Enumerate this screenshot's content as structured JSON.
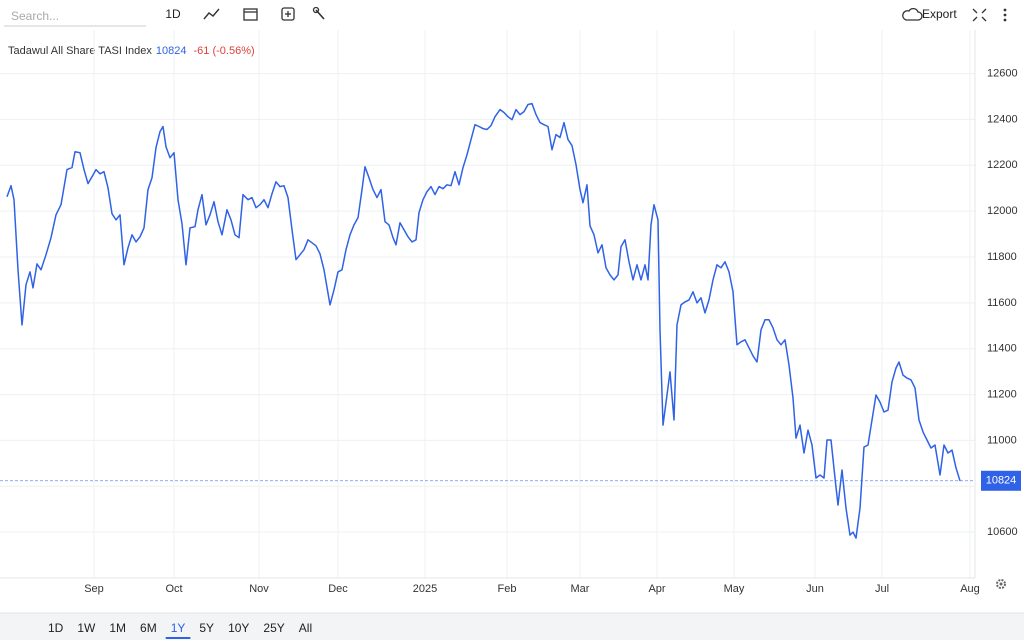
{
  "toolbar": {
    "search_placeholder": "Search...",
    "interval": "1D",
    "export": "Export"
  },
  "chart_data": {
    "type": "line",
    "title": "Tadawul All Share TASI Index",
    "last_value": 10824,
    "change": "-61 (-0.56%)",
    "color": "#2f62e6",
    "change_color": "#e0413a",
    "grid": true,
    "xlim": [
      -7,
      968
    ],
    "ylim": [
      10400,
      12790
    ],
    "xticks": [
      {
        "value": 87,
        "label": "Sep"
      },
      {
        "value": 167,
        "label": "Oct"
      },
      {
        "value": 252,
        "label": "Nov"
      },
      {
        "value": 331,
        "label": "Dec"
      },
      {
        "value": 418,
        "label": "2025"
      },
      {
        "value": 500,
        "label": "Feb"
      },
      {
        "value": 573,
        "label": "Mar"
      },
      {
        "value": 650,
        "label": "Apr"
      },
      {
        "value": 727,
        "label": "May"
      },
      {
        "value": 808,
        "label": "Jun"
      },
      {
        "value": 875,
        "label": "Jul"
      },
      {
        "value": 963,
        "label": "Aug"
      }
    ],
    "yticks": [
      10600,
      10800,
      11000,
      11200,
      11400,
      11600,
      11800,
      12000,
      12200,
      12400,
      12600
    ],
    "x": [
      0,
      4,
      7,
      11,
      15,
      19,
      23,
      26,
      30,
      34,
      39,
      44,
      49,
      54,
      60,
      65,
      68,
      73,
      77,
      81,
      85,
      89,
      93,
      97,
      101,
      105,
      109,
      113,
      117,
      121,
      125,
      129,
      133,
      137,
      141,
      145,
      149,
      153,
      156,
      159,
      163,
      167,
      171,
      175,
      179,
      183,
      188,
      191,
      195,
      199,
      203,
      207,
      211,
      215,
      220,
      224,
      228,
      232,
      236,
      241,
      245,
      249,
      253,
      257,
      261,
      265,
      269,
      273,
      277,
      281,
      285,
      289,
      293,
      297,
      301,
      305,
      309,
      313,
      317,
      323,
      327,
      331,
      335,
      339,
      343,
      347,
      351,
      355,
      358,
      362,
      366,
      370,
      374,
      378,
      382,
      386,
      389,
      393,
      397,
      401,
      405,
      409,
      412,
      416,
      420,
      424,
      428,
      432,
      436,
      440,
      444,
      448,
      452,
      456,
      460,
      464,
      468,
      472,
      476,
      480,
      484,
      488,
      493,
      497,
      501,
      505,
      509,
      513,
      517,
      521,
      525,
      529,
      533,
      537,
      541,
      545,
      549,
      553,
      557,
      561,
      565,
      569,
      573,
      576,
      580,
      583,
      587,
      591,
      595,
      599,
      603,
      607,
      611,
      614,
      618,
      622,
      626,
      630,
      634,
      638,
      641,
      644,
      647,
      651,
      653,
      656,
      660,
      663,
      667,
      670,
      674,
      678,
      682,
      686,
      690,
      694,
      698,
      702,
      706,
      710,
      714,
      718,
      722,
      726,
      730,
      734,
      738,
      742,
      746,
      750,
      754,
      758,
      762,
      766,
      770,
      774,
      778,
      782,
      786,
      789,
      793,
      797,
      801,
      805,
      809,
      813,
      817,
      820,
      824,
      828,
      831,
      835,
      839,
      843,
      846,
      849,
      853,
      857,
      861,
      865,
      869,
      873,
      877,
      881,
      885,
      889,
      892,
      896,
      900,
      904,
      908,
      912,
      916,
      920,
      924,
      928,
      933,
      937,
      941,
      945,
      949,
      953
    ],
    "values": [
      12063,
      12111,
      12050,
      11744,
      11504,
      11679,
      11735,
      11665,
      11770,
      11744,
      11810,
      11884,
      11984,
      12028,
      12181,
      12190,
      12259,
      12255,
      12181,
      12120,
      12150,
      12181,
      12163,
      12172,
      12102,
      11989,
      11962,
      11984,
      11766,
      11840,
      11897,
      11866,
      11888,
      11927,
      12094,
      12146,
      12277,
      12347,
      12369,
      12281,
      12233,
      12255,
      12050,
      11945,
      11766,
      11927,
      11932,
      12006,
      12072,
      11940,
      11984,
      12041,
      11954,
      11897,
      12006,
      11962,
      11897,
      11884,
      12072,
      12050,
      12059,
      12015,
      12028,
      12050,
      12015,
      12076,
      12128,
      12107,
      12111,
      12059,
      11919,
      11788,
      11810,
      11832,
      11875,
      11862,
      11849,
      11814,
      11744,
      11591,
      11657,
      11735,
      11744,
      11832,
      11897,
      11940,
      11971,
      12094,
      12194,
      12146,
      12094,
      12059,
      12094,
      11954,
      11940,
      11884,
      11853,
      11949,
      11919,
      11888,
      11866,
      11875,
      11993,
      12050,
      12085,
      12107,
      12072,
      12107,
      12098,
      12115,
      12111,
      12172,
      12115,
      12190,
      12246,
      12312,
      12377,
      12369,
      12360,
      12356,
      12373,
      12412,
      12443,
      12430,
      12412,
      12399,
      12443,
      12421,
      12434,
      12465,
      12469,
      12421,
      12386,
      12377,
      12369,
      12268,
      12334,
      12321,
      12386,
      12312,
      12286,
      12203,
      12094,
      12037,
      12115,
      11936,
      11897,
      11818,
      11853,
      11753,
      11722,
      11700,
      11722,
      11845,
      11875,
      11779,
      11700,
      11766,
      11700,
      11766,
      11700,
      11940,
      12028,
      11962,
      11482,
      11067,
      11198,
      11299,
      11089,
      11504,
      11591,
      11604,
      11613,
      11648,
      11600,
      11622,
      11556,
      11613,
      11700,
      11766,
      11753,
      11779,
      11735,
      11648,
      11417,
      11430,
      11439,
      11404,
      11369,
      11342,
      11482,
      11526,
      11526,
      11491,
      11439,
      11417,
      11439,
      11329,
      11185,
      11010,
      11067,
      10945,
      11045,
      10980,
      10836,
      10849,
      10836,
      11002,
      11002,
      10836,
      10718,
      10871,
      10705,
      10587,
      10600,
      10574,
      10705,
      10971,
      10980,
      11089,
      11198,
      11167,
      11124,
      11132,
      11255,
      11316,
      11342,
      11285,
      11272,
      11264,
      11229,
      11089,
      11037,
      11002,
      10967,
      10980,
      10849,
      10980,
      10945,
      10958,
      10880,
      10824
    ]
  },
  "ranges": [
    "1D",
    "1W",
    "1M",
    "6M",
    "1Y",
    "5Y",
    "10Y",
    "25Y",
    "All"
  ],
  "active_range": 4
}
